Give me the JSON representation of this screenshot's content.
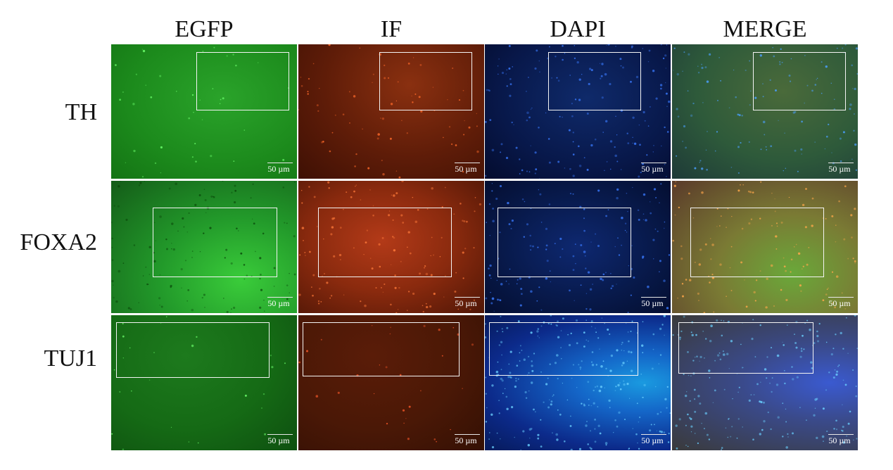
{
  "columns": [
    "EGFP",
    "IF",
    "DAPI",
    "MERGE"
  ],
  "rows": [
    "TH",
    "FOXA2",
    "TUJ1"
  ],
  "scale_bar_label": "50 µm",
  "channel_colors": {
    "EGFP": "#1f8a1f",
    "IF": "#6a1e08",
    "DAPI": "#0a1a4a",
    "MERGE": "#3a5a2a"
  }
}
